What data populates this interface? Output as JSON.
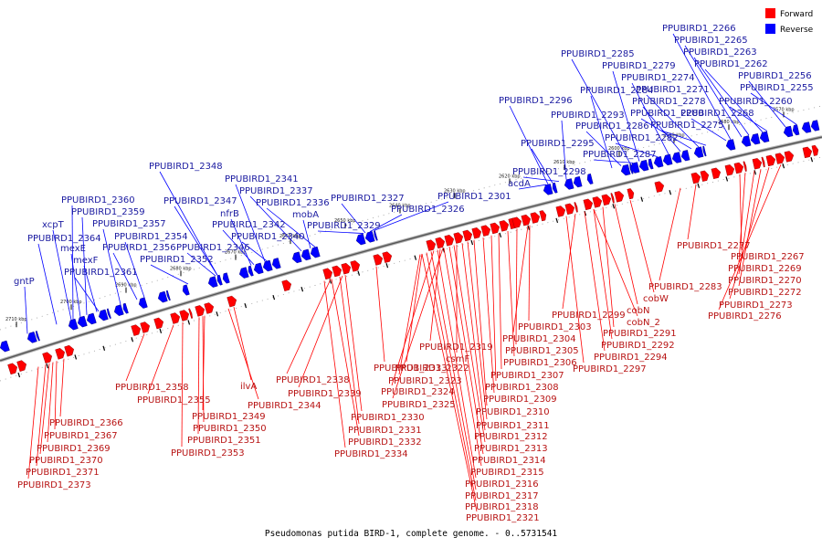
{
  "caption": "Pseudomonas putida BIRD-1, complete genome. - 0..5731541",
  "legend": [
    {
      "label": "Forward",
      "color": "#ff0000"
    },
    {
      "label": "Reverse",
      "color": "#0000ff"
    }
  ],
  "colors": {
    "forward": "#ff0000",
    "reverse": "#0000ff",
    "forward_text": "#b81414",
    "reverse_text": "#1a1aa0",
    "backbone": "#808080"
  },
  "ticks": [
    "2570 kbp",
    "2580 kbp",
    "2590 kbp",
    "2600 kbp",
    "2610 kbp",
    "2620 kbp",
    "2630 kbp",
    "2640 kbp",
    "2650 kbp",
    "2660 kbp",
    "2670 kbp",
    "2680 kbp",
    "2690 kbp",
    "2700 kbp",
    "2710 kbp"
  ],
  "reverse_genes": [
    "PPUBIRD1_2266",
    "PPUBIRD1_2265",
    "PPUBIRD1_2263",
    "PPUBIRD1_2262",
    "PPUBIRD1_2256",
    "PPUBIRD1_2255",
    "PPUBIRD1_2285",
    "PPUBIRD1_2279",
    "PPUBIRD1_2274",
    "PPUBIRD1_2271",
    "PPUBIRD1_2260",
    "PPUBIRD1_2284",
    "PPUBIRD1_2278",
    "PPUBIRD1_2268",
    "PPUBIRD1_2296",
    "PPUBIRD1_2280",
    "PPUBIRD1_2293",
    "PPUBIRD1_2286",
    "PPUBIRD1_2275",
    "PPUBIRD1_2282",
    "PPUBIRD1_2295",
    "PPUBIRD1_2287",
    "PPUBIRD1_2298",
    "acdA",
    "PPUBIRD1_2348",
    "PPUBIRD1_2341",
    "PPUBIRD1_2301",
    "PPUBIRD1_2337",
    "PPUBIRD1_2347",
    "PPUBIRD1_2336",
    "PPUBIRD1_2360",
    "PPUBIRD1_2327",
    "nfrB",
    "PPUBIRD1_2326",
    "PPUBIRD1_2359",
    "mobA",
    "PPUBIRD1_2342",
    "PPUBIRD1_2329",
    "xcpT",
    "PPUBIRD1_2357",
    "PPUBIRD1_2340",
    "PPUBIRD1_2364",
    "PPUBIRD1_2354",
    "mexE",
    "PPUBIRD1_2356",
    "PPUBIRD1_2346",
    "mexF",
    "PPUBIRD1_2352",
    "PPUBIRD1_2361",
    "gntP"
  ],
  "forward_genes": [
    "PPUBIRD1_2277",
    "PPUBIRD1_2267",
    "PPUBIRD1_2269",
    "PPUBIRD1_2270",
    "PPUBIRD1_2283",
    "PPUBIRD1_2272",
    "cobW",
    "PPUBIRD1_2273",
    "cobN",
    "PPUBIRD1_2276",
    "PPUBIRD1_2299",
    "cobN_2",
    "PPUBIRD1_2303",
    "PPUBIRD1_2291",
    "PPUBIRD1_2304",
    "PPUBIRD1_2292",
    "PPUBIRD1_2319",
    "PPUBIRD1_2305",
    "PPUBIRD1_2294",
    "csmF",
    "PPUBIRD1_2306",
    "PPUBIRD1_2297",
    "PPUBIRD1_2333",
    "PPUBIRD1_2322",
    "PPUBIRD1_2307",
    "PPUBIRD1_2338",
    "PPUBIRD1_2323",
    "PPUBIRD1_2308",
    "PPUBIRD1_2358",
    "ilvA",
    "PPUBIRD1_2339",
    "PPUBIRD1_2324",
    "PPUBIRD1_2309",
    "PPUBIRD1_2355",
    "PPUBIRD1_2344",
    "PPUBIRD1_2325",
    "PPUBIRD1_2310",
    "PPUBIRD1_2349",
    "PPUBIRD1_2330",
    "PPUBIRD1_2311",
    "PPUBIRD1_2366",
    "PPUBIRD1_2350",
    "PPUBIRD1_2331",
    "PPUBIRD1_2312",
    "PPUBIRD1_2367",
    "PPUBIRD1_2351",
    "PPUBIRD1_2332",
    "PPUBIRD1_2313",
    "PPUBIRD1_2369",
    "PPUBIRD1_2353",
    "PPUBIRD1_2334",
    "PPUBIRD1_2314",
    "PPUBIRD1_2370",
    "PPUBIRD1_2315",
    "PPUBIRD1_2371",
    "PPUBIRD1_2316",
    "PPUBIRD1_2373",
    "PPUBIRD1_2317",
    "PPUBIRD1_2318",
    "PPUBIRD1_2321"
  ]
}
